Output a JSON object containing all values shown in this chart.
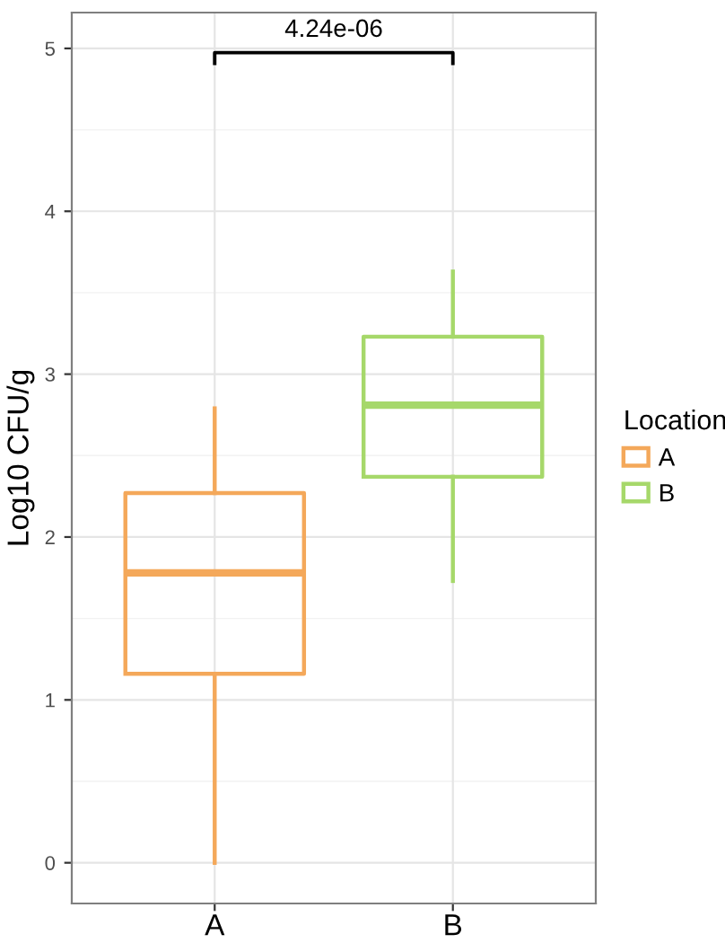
{
  "chart_data": {
    "type": "box",
    "ylabel": "Log10 CFU/g",
    "legend_title": "Location",
    "categories": [
      "A",
      "B"
    ],
    "series": [
      {
        "name": "A",
        "color": "#f4a85a",
        "boxes": [
          {
            "low": 0,
            "q1": 1.16,
            "median": 1.78,
            "q3": 2.27,
            "high": 2.79
          },
          null
        ]
      },
      {
        "name": "B",
        "color": "#a6d86a",
        "boxes": [
          null,
          {
            "low": 1.73,
            "q1": 2.37,
            "median": 2.81,
            "q3": 3.23,
            "high": 3.63
          }
        ]
      }
    ],
    "ylim": [
      -0.25,
      5.22
    ],
    "yticks": [
      0,
      1,
      2,
      3,
      4,
      5
    ],
    "grid": true,
    "legend": "right",
    "annotations": [
      "4.24e-06"
    ]
  }
}
